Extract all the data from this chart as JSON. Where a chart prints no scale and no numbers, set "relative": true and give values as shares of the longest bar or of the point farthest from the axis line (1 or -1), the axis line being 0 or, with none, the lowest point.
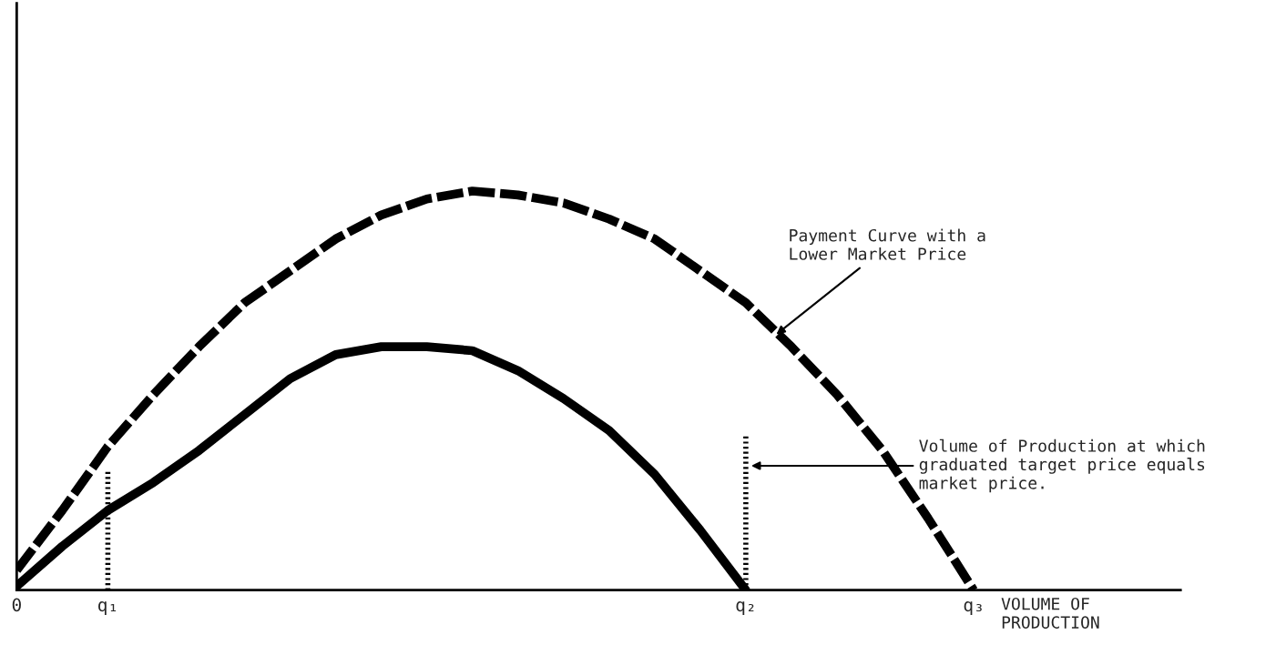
{
  "chart_data": {
    "type": "line",
    "relative": true,
    "xlabel": "VOLUME OF\nPRODUCTION",
    "categories": [
      "0",
      null,
      "q₁",
      null,
      null,
      null,
      null,
      null,
      null,
      null,
      null,
      null,
      null,
      null,
      null,
      null,
      "q₂",
      null,
      null,
      null,
      null,
      "q₃"
    ],
    "series": [
      {
        "color": "#000000",
        "line_style": "dashed",
        "values": [
          0.05,
          0.2,
          0.36,
          0.49,
          0.61,
          0.72,
          0.8,
          0.88,
          0.94,
          0.98,
          1,
          0.99,
          0.97,
          0.93,
          0.88,
          0.8,
          0.72,
          0.61,
          0.49,
          0.35,
          0.18,
          0
        ]
      },
      {
        "color": "#000000",
        "line_style": "solid",
        "values": [
          0.01,
          0.11,
          0.2,
          0.27,
          0.35,
          0.44,
          0.53,
          0.59,
          0.61,
          0.61,
          0.6,
          0.55,
          0.48,
          0.4,
          0.29,
          0.15,
          0,
          null,
          null,
          null,
          null,
          null
        ]
      }
    ],
    "ref_lines": [
      {
        "axis": "x",
        "value": "q₁",
        "color": "#000000",
        "line_style": "dotted"
      },
      {
        "axis": "x",
        "value": "q₂",
        "color": "#000000",
        "line_style": "dotted"
      }
    ],
    "annotations": [
      "Payment Curve with a\nLower Market Price",
      "Volume of Production at which\ngraduated target price equals\nmarket price."
    ]
  }
}
